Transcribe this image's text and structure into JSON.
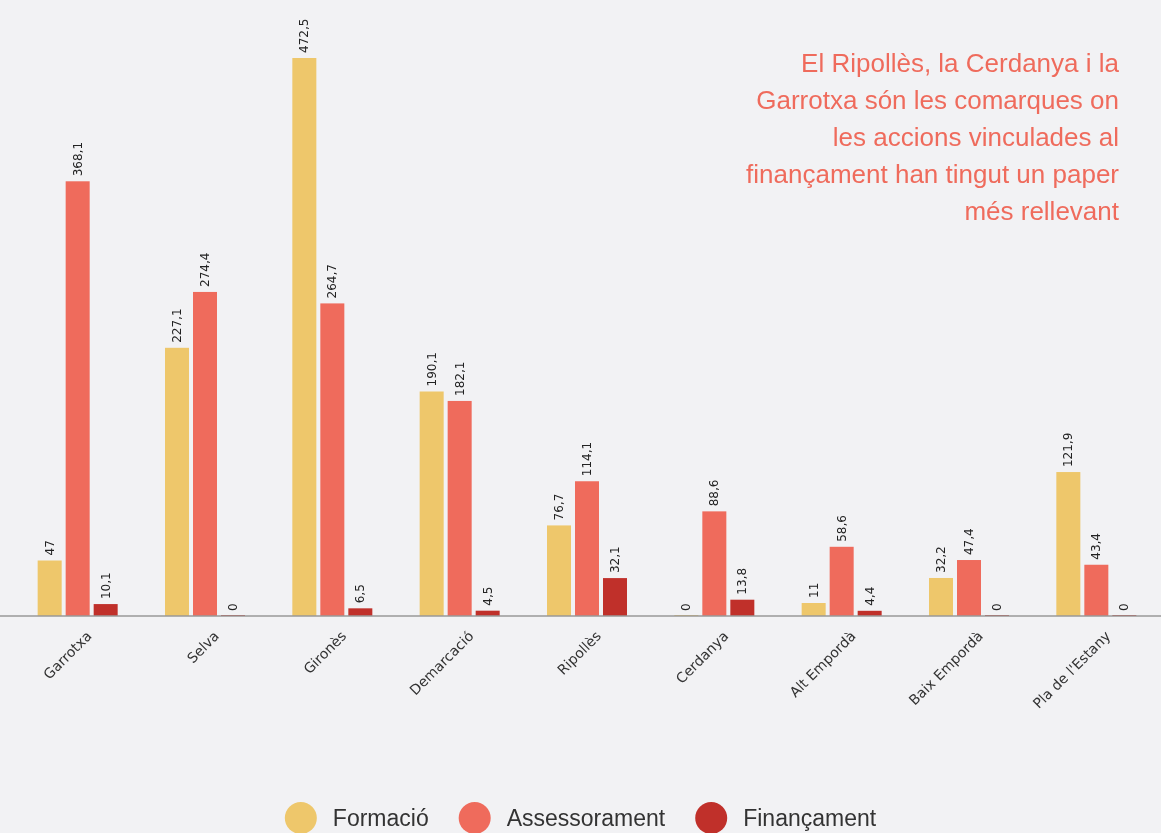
{
  "chart_data": {
    "type": "bar",
    "categories": [
      "Garrotxa",
      "Selva",
      "Gironès",
      "Demarcació",
      "Ripollès",
      "Cerdanya",
      "Alt Empordà",
      "Baix Empordà",
      "Pla de l'Estany"
    ],
    "series": [
      {
        "name": "Formació",
        "color": "#eec76b",
        "values": [
          47,
          227.1,
          472.5,
          190.1,
          76.7,
          0,
          11,
          32.2,
          121.9
        ],
        "value_labels": [
          "47",
          "227,1",
          "472,5",
          "190,1",
          "76,7",
          "0",
          "11",
          "32,2",
          "121,9"
        ]
      },
      {
        "name": "Assessorament",
        "color": "#ef6b5c",
        "values": [
          368.1,
          274.4,
          264.7,
          182.1,
          114.1,
          88.6,
          58.6,
          47.4,
          43.4
        ],
        "value_labels": [
          "368,1",
          "274,4",
          "264,7",
          "182,1",
          "114,1",
          "88,6",
          "58,6",
          "47,4",
          "43,4"
        ]
      },
      {
        "name": "Finançament",
        "color": "#c0302a",
        "values": [
          10.1,
          0,
          6.5,
          4.5,
          32.1,
          13.8,
          4.4,
          0,
          0
        ],
        "value_labels": [
          "10,1",
          "0",
          "6,5",
          "4,5",
          "32,1",
          "13,8",
          "4,4",
          "0",
          "0"
        ]
      }
    ],
    "annotations": [
      "El Ripollès, la Cerdanya i la Garrotxa són les comarques on les accions vinculades al finançament han tingut un paper més rellevant"
    ],
    "legend": "bottom"
  }
}
